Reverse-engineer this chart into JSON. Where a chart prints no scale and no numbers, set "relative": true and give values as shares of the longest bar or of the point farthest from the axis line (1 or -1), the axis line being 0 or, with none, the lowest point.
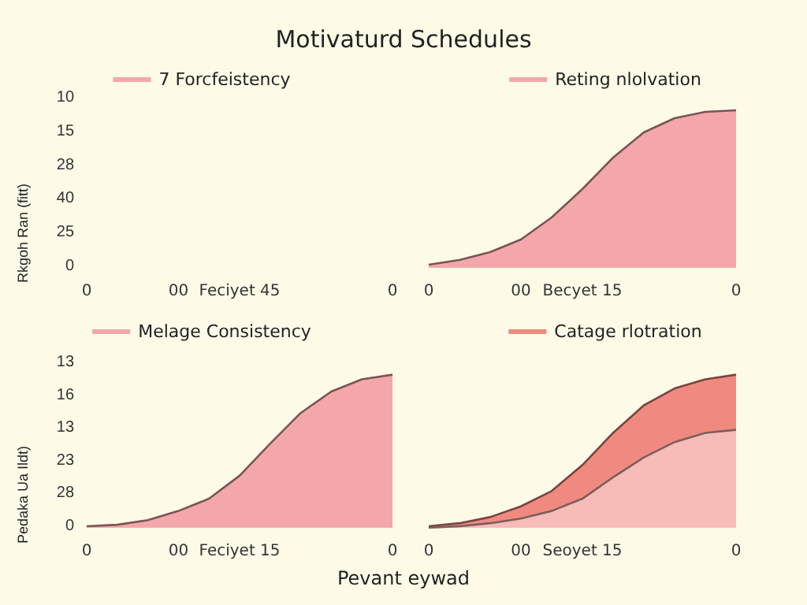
{
  "chart_data": [
    {
      "type": "other",
      "title": "Motivaturd Schedules",
      "ylabel": "Rkgoh Ran (fitt)",
      "legend": "top",
      "categories": [
        "0",
        null,
        null,
        "00",
        null,
        "Feciyet 45",
        null,
        null,
        null,
        null,
        "0"
      ],
      "annotations": [
        "10",
        "15",
        "28",
        "40",
        "25",
        "0"
      ],
      "series": [
        {
          "name": "7 Forcfeistency",
          "color": "#f4a7ab",
          "values": [
            null,
            null,
            null,
            null,
            null,
            null,
            null,
            null,
            null,
            null,
            null
          ]
        }
      ]
    },
    {
      "type": "area",
      "legend": "top",
      "relative": true,
      "categories": [
        "0",
        null,
        null,
        "00",
        null,
        "Becyet 15",
        null,
        null,
        null,
        null,
        "0"
      ],
      "series": [
        {
          "name": "Reting nlolvation",
          "color": "#f4a7ab",
          "values": [
            0.02,
            0.05,
            0.1,
            0.18,
            0.32,
            0.5,
            0.7,
            0.86,
            0.95,
            0.99,
            1
          ]
        }
      ]
    },
    {
      "type": "area",
      "ylabel": "Pedaka Ua Ildt)",
      "xlabel": "Pevant eywad",
      "legend": "top",
      "relative": true,
      "categories": [
        "0",
        null,
        null,
        "00",
        null,
        "Feciyet 15",
        null,
        null,
        null,
        null,
        "0"
      ],
      "annotations": [
        "13",
        "16",
        "13",
        "23",
        "28",
        "0"
      ],
      "series": [
        {
          "name": "Melage Consistency",
          "color": "#f4a7ab",
          "values": [
            0.01,
            0.02,
            0.05,
            0.11,
            0.19,
            0.34,
            0.55,
            0.75,
            0.89,
            0.97,
            1
          ]
        }
      ]
    },
    {
      "type": "area",
      "legend": "top",
      "relative": true,
      "categories": [
        "0",
        null,
        null,
        "00",
        null,
        "Seoyet 15",
        null,
        null,
        null,
        null,
        "0"
      ],
      "series": [
        {
          "name": "Catage rlotration",
          "color": "#f08a80",
          "values": [
            0.01,
            0.03,
            0.07,
            0.14,
            0.24,
            0.41,
            0.62,
            0.8,
            0.91,
            0.97,
            1
          ]
        },
        {
          "color": "#f7bcb8",
          "values": [
            0,
            0.01,
            0.03,
            0.06,
            0.11,
            0.19,
            0.33,
            0.46,
            0.56,
            0.62,
            0.64
          ]
        }
      ]
    }
  ]
}
